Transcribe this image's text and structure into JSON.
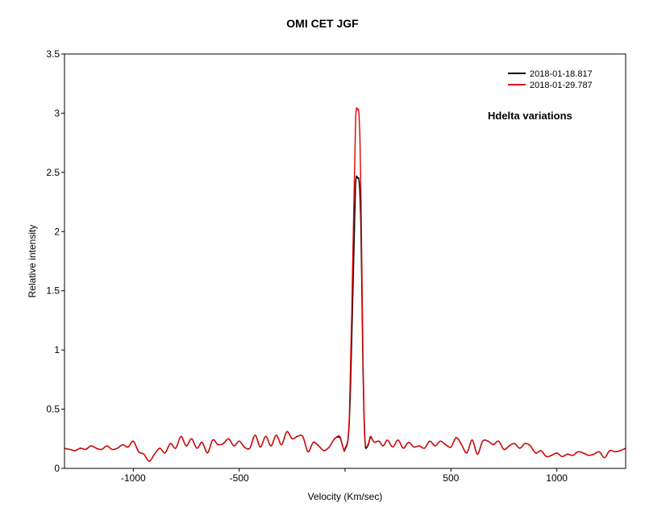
{
  "chart_data": {
    "type": "line",
    "title": "OMI CET   JGF",
    "xlabel": "Velocity (Km/sec)",
    "ylabel": "Relative intensity",
    "xlim": [
      -1325,
      1325
    ],
    "ylim": [
      0,
      3.5
    ],
    "x_ticks": [
      -1000,
      -500,
      0,
      500,
      1000
    ],
    "x_tick_labels": [
      "-1000",
      "-500",
      "",
      "500",
      "1000"
    ],
    "y_ticks": [
      0,
      0.5,
      1,
      1.5,
      2,
      2.5,
      3,
      3.5
    ],
    "y_tick_labels": [
      "0",
      "0.5",
      "1",
      "1.5",
      "2",
      "2.5",
      "3",
      "3.5"
    ],
    "grid": false,
    "legend_position": "top-right",
    "annotation": "Hdelta  variations",
    "x": [
      -1325,
      -1300,
      -1275,
      -1250,
      -1225,
      -1200,
      -1175,
      -1150,
      -1125,
      -1100,
      -1075,
      -1050,
      -1025,
      -1000,
      -975,
      -950,
      -925,
      -900,
      -875,
      -850,
      -825,
      -800,
      -775,
      -750,
      -725,
      -700,
      -675,
      -650,
      -625,
      -600,
      -575,
      -550,
      -525,
      -500,
      -475,
      -450,
      -425,
      -400,
      -375,
      -350,
      -325,
      -300,
      -275,
      -250,
      -225,
      -200,
      -175,
      -150,
      -125,
      -100,
      -75,
      -50,
      -25,
      -10,
      0,
      20,
      40,
      50,
      60,
      65,
      70,
      75,
      80,
      85,
      90,
      95,
      100,
      110,
      120,
      130,
      140,
      160,
      180,
      200,
      225,
      250,
      275,
      300,
      325,
      350,
      375,
      400,
      425,
      450,
      475,
      500,
      525,
      550,
      575,
      600,
      625,
      650,
      675,
      700,
      725,
      750,
      775,
      800,
      825,
      850,
      875,
      900,
      925,
      950,
      975,
      1000,
      1025,
      1050,
      1075,
      1100,
      1125,
      1150,
      1175,
      1200,
      1225,
      1250,
      1275,
      1300,
      1325
    ],
    "series": [
      {
        "name": "2018-01-18.817",
        "color": "#000000",
        "values": [
          0.17,
          0.16,
          0.15,
          0.17,
          0.16,
          0.19,
          0.17,
          0.16,
          0.19,
          0.16,
          0.17,
          0.2,
          0.18,
          0.23,
          0.14,
          0.12,
          0.06,
          0.12,
          0.17,
          0.13,
          0.21,
          0.17,
          0.27,
          0.19,
          0.25,
          0.17,
          0.22,
          0.13,
          0.24,
          0.2,
          0.21,
          0.25,
          0.19,
          0.23,
          0.18,
          0.17,
          0.28,
          0.18,
          0.27,
          0.19,
          0.28,
          0.2,
          0.31,
          0.25,
          0.27,
          0.27,
          0.14,
          0.22,
          0.19,
          0.15,
          0.18,
          0.25,
          0.26,
          0.18,
          0.16,
          0.4,
          1.7,
          2.4,
          2.45,
          2.44,
          2.32,
          2.0,
          1.4,
          0.8,
          0.4,
          0.2,
          0.17,
          0.2,
          0.26,
          0.24,
          0.22,
          0.23,
          0.19,
          0.24,
          0.18,
          0.24,
          0.17,
          0.22,
          0.18,
          0.19,
          0.17,
          0.23,
          0.19,
          0.23,
          0.2,
          0.18,
          0.26,
          0.2,
          0.13,
          0.24,
          0.12,
          0.23,
          0.23,
          0.2,
          0.23,
          0.16,
          0.19,
          0.21,
          0.17,
          0.21,
          0.19,
          0.13,
          0.15,
          0.1,
          0.11,
          0.13,
          0.1,
          0.12,
          0.11,
          0.14,
          0.13,
          0.11,
          0.12,
          0.14,
          0.09,
          0.15,
          0.14,
          0.15,
          0.17
        ]
      },
      {
        "name": "2018-01-29.787",
        "color": "#e00000",
        "values": [
          0.17,
          0.16,
          0.15,
          0.17,
          0.16,
          0.19,
          0.17,
          0.16,
          0.19,
          0.16,
          0.17,
          0.2,
          0.18,
          0.23,
          0.14,
          0.12,
          0.06,
          0.12,
          0.17,
          0.13,
          0.21,
          0.17,
          0.27,
          0.19,
          0.25,
          0.17,
          0.22,
          0.13,
          0.24,
          0.2,
          0.21,
          0.25,
          0.19,
          0.23,
          0.18,
          0.17,
          0.28,
          0.18,
          0.27,
          0.19,
          0.28,
          0.2,
          0.31,
          0.25,
          0.27,
          0.27,
          0.14,
          0.22,
          0.19,
          0.15,
          0.18,
          0.25,
          0.27,
          0.18,
          0.17,
          0.45,
          2.1,
          2.95,
          3.03,
          3.0,
          2.8,
          2.3,
          1.6,
          0.9,
          0.45,
          0.22,
          0.18,
          0.21,
          0.27,
          0.24,
          0.22,
          0.23,
          0.19,
          0.24,
          0.18,
          0.24,
          0.17,
          0.22,
          0.18,
          0.19,
          0.17,
          0.23,
          0.19,
          0.23,
          0.2,
          0.18,
          0.26,
          0.2,
          0.13,
          0.24,
          0.12,
          0.23,
          0.23,
          0.2,
          0.23,
          0.16,
          0.19,
          0.21,
          0.17,
          0.21,
          0.19,
          0.13,
          0.15,
          0.1,
          0.11,
          0.13,
          0.1,
          0.12,
          0.11,
          0.14,
          0.13,
          0.11,
          0.12,
          0.14,
          0.09,
          0.15,
          0.14,
          0.15,
          0.17
        ]
      }
    ]
  }
}
